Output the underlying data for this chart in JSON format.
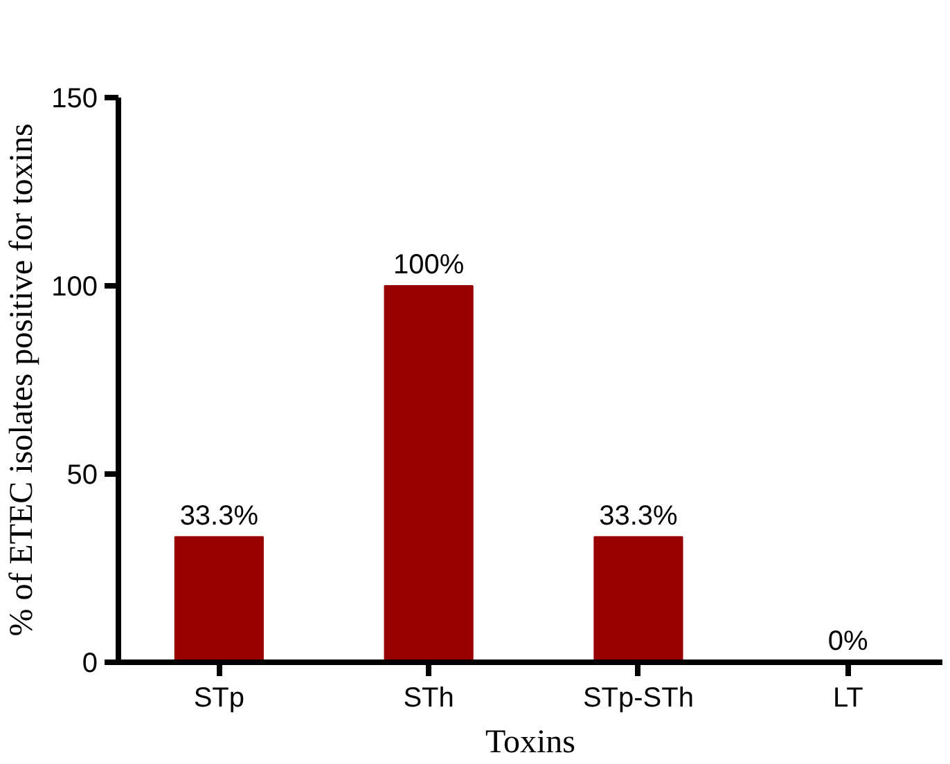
{
  "chart_data": {
    "type": "bar",
    "xlabel": "Toxins",
    "ylabel": "% of ETEC isolates positive for toxins",
    "categories": [
      "STp",
      "STh",
      "STp-STh",
      "LT"
    ],
    "values": [
      33.3,
      100,
      33.3,
      0
    ],
    "value_labels": [
      "33.3%",
      "100%",
      "33.3%",
      "0%"
    ],
    "color": "#990000",
    "ylim": [
      0,
      150
    ],
    "yticks": [
      0,
      50,
      100,
      150
    ],
    "grid": false
  }
}
